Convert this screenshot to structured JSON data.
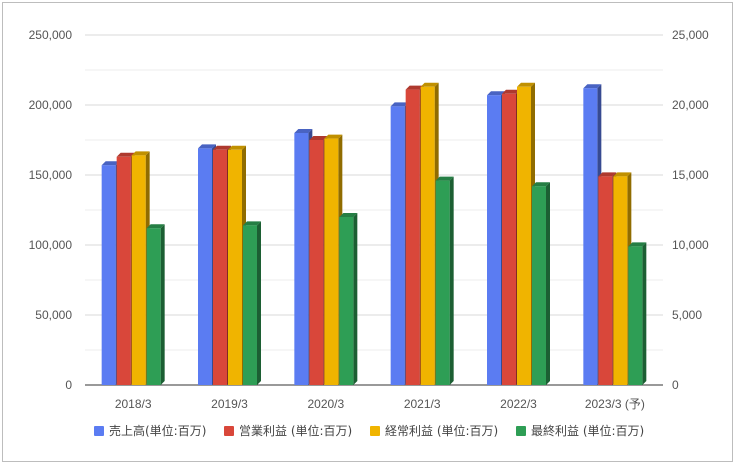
{
  "chart_data": {
    "type": "bar",
    "categories": [
      "2018/3",
      "2019/3",
      "2020/3",
      "2021/3",
      "2022/3",
      "2023/3 (予)"
    ],
    "series": [
      {
        "name": "売上高(単位:百万)",
        "axis": "left",
        "color": "#5b7cf2",
        "values": [
          157000,
          169000,
          180000,
          199000,
          207000,
          212000
        ]
      },
      {
        "name": "営業利益 (単位:百万)",
        "axis": "right",
        "color": "#d9473a",
        "values": [
          16300,
          16800,
          17500,
          21100,
          20800,
          14900
        ]
      },
      {
        "name": "経常利益 (単位:百万)",
        "axis": "right",
        "color": "#f0b400",
        "values": [
          16400,
          16800,
          17600,
          21300,
          21300,
          14900
        ]
      },
      {
        "name": "最終利益 (単位:百万)",
        "axis": "right",
        "color": "#2e9e55",
        "values": [
          11200,
          11400,
          12000,
          14600,
          14200,
          9900
        ]
      }
    ],
    "left_axis": {
      "ylim": [
        0,
        250000
      ],
      "ticks": [
        "0",
        "50,000",
        "100,000",
        "150,000",
        "200,000",
        "250,000"
      ]
    },
    "right_axis": {
      "ylim": [
        0,
        25000
      ],
      "ticks": [
        "0",
        "5,000",
        "10,000",
        "15,000",
        "20,000",
        "25,000"
      ]
    },
    "grid": true,
    "legend_position": "bottom"
  }
}
